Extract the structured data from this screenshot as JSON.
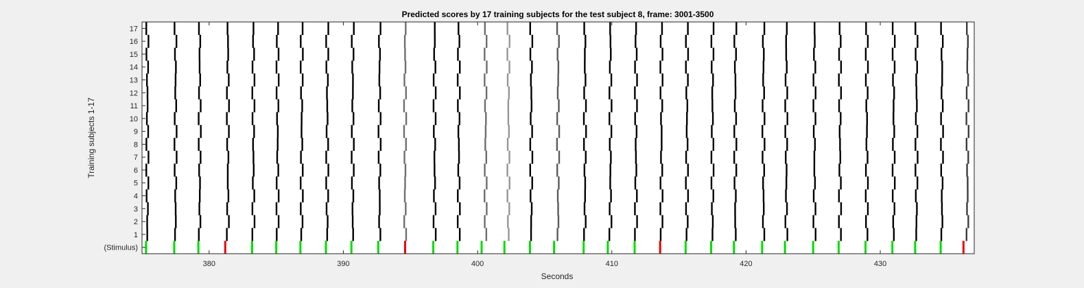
{
  "chart_data": {
    "type": "heatmap",
    "title": "Predicted scores by 17 training subjects for the test subject 8, frame: 3001-3500",
    "xlabel": "Seconds",
    "ylabel": "Training subjects 1-17",
    "xlim": [
      375,
      437
    ],
    "x_ticks": [
      380,
      390,
      400,
      410,
      420,
      430
    ],
    "y_tick_labels": [
      "(Stimulus)",
      "1",
      "2",
      "3",
      "4",
      "5",
      "6",
      "7",
      "8",
      "9",
      "10",
      "11",
      "12",
      "13",
      "14",
      "15",
      "16",
      "17"
    ],
    "stimulus_colors": {
      "green": "#00dd00",
      "red": "#ee0000"
    },
    "stimulus_events": [
      {
        "t": 375.3,
        "color": "green"
      },
      {
        "t": 377.4,
        "color": "green"
      },
      {
        "t": 379.2,
        "color": "green"
      },
      {
        "t": 381.2,
        "color": "red"
      },
      {
        "t": 383.2,
        "color": "green"
      },
      {
        "t": 385.0,
        "color": "green"
      },
      {
        "t": 386.8,
        "color": "green"
      },
      {
        "t": 388.7,
        "color": "green"
      },
      {
        "t": 390.6,
        "color": "green"
      },
      {
        "t": 392.6,
        "color": "green"
      },
      {
        "t": 394.6,
        "color": "red"
      },
      {
        "t": 396.7,
        "color": "green"
      },
      {
        "t": 398.5,
        "color": "green"
      },
      {
        "t": 400.3,
        "color": "green"
      },
      {
        "t": 402.0,
        "color": "green"
      },
      {
        "t": 403.9,
        "color": "green"
      },
      {
        "t": 405.7,
        "color": "green"
      },
      {
        "t": 407.9,
        "color": "green"
      },
      {
        "t": 409.7,
        "color": "green"
      },
      {
        "t": 411.7,
        "color": "green"
      },
      {
        "t": 413.6,
        "color": "red"
      },
      {
        "t": 415.5,
        "color": "green"
      },
      {
        "t": 417.4,
        "color": "green"
      },
      {
        "t": 419.1,
        "color": "green"
      },
      {
        "t": 421.2,
        "color": "green"
      },
      {
        "t": 422.9,
        "color": "green"
      },
      {
        "t": 425.0,
        "color": "green"
      },
      {
        "t": 426.9,
        "color": "green"
      },
      {
        "t": 428.9,
        "color": "green"
      },
      {
        "t": 430.9,
        "color": "green"
      },
      {
        "t": 432.6,
        "color": "green"
      },
      {
        "t": 434.5,
        "color": "green"
      },
      {
        "t": 436.2,
        "color": "red"
      }
    ],
    "predicted_score_bands": [
      {
        "t": 375.4,
        "gray": 0
      },
      {
        "t": 377.5,
        "gray": 0
      },
      {
        "t": 379.3,
        "gray": 0
      },
      {
        "t": 381.4,
        "gray": 0
      },
      {
        "t": 383.3,
        "gray": 0
      },
      {
        "t": 385.1,
        "gray": 0
      },
      {
        "t": 386.9,
        "gray": 0
      },
      {
        "t": 388.8,
        "gray": 0
      },
      {
        "t": 390.7,
        "gray": 0
      },
      {
        "t": 392.7,
        "gray": 0
      },
      {
        "t": 394.6,
        "gray": 110
      },
      {
        "t": 396.8,
        "gray": 0
      },
      {
        "t": 398.6,
        "gray": 0
      },
      {
        "t": 400.6,
        "gray": 110
      },
      {
        "t": 402.3,
        "gray": 150
      },
      {
        "t": 404.0,
        "gray": 0
      },
      {
        "t": 406.0,
        "gray": 90
      },
      {
        "t": 408.0,
        "gray": 0
      },
      {
        "t": 409.9,
        "gray": 0
      },
      {
        "t": 411.8,
        "gray": 0
      },
      {
        "t": 413.7,
        "gray": 0
      },
      {
        "t": 415.6,
        "gray": 0
      },
      {
        "t": 417.5,
        "gray": 0
      },
      {
        "t": 419.2,
        "gray": 0
      },
      {
        "t": 421.3,
        "gray": 0
      },
      {
        "t": 423.0,
        "gray": 0
      },
      {
        "t": 425.1,
        "gray": 0
      },
      {
        "t": 427.0,
        "gray": 0
      },
      {
        "t": 429.0,
        "gray": 0
      },
      {
        "t": 431.0,
        "gray": 0
      },
      {
        "t": 432.7,
        "gray": 0
      },
      {
        "t": 434.6,
        "gray": 0
      },
      {
        "t": 436.5,
        "gray": 60
      }
    ],
    "grid": false,
    "legend": "none"
  }
}
